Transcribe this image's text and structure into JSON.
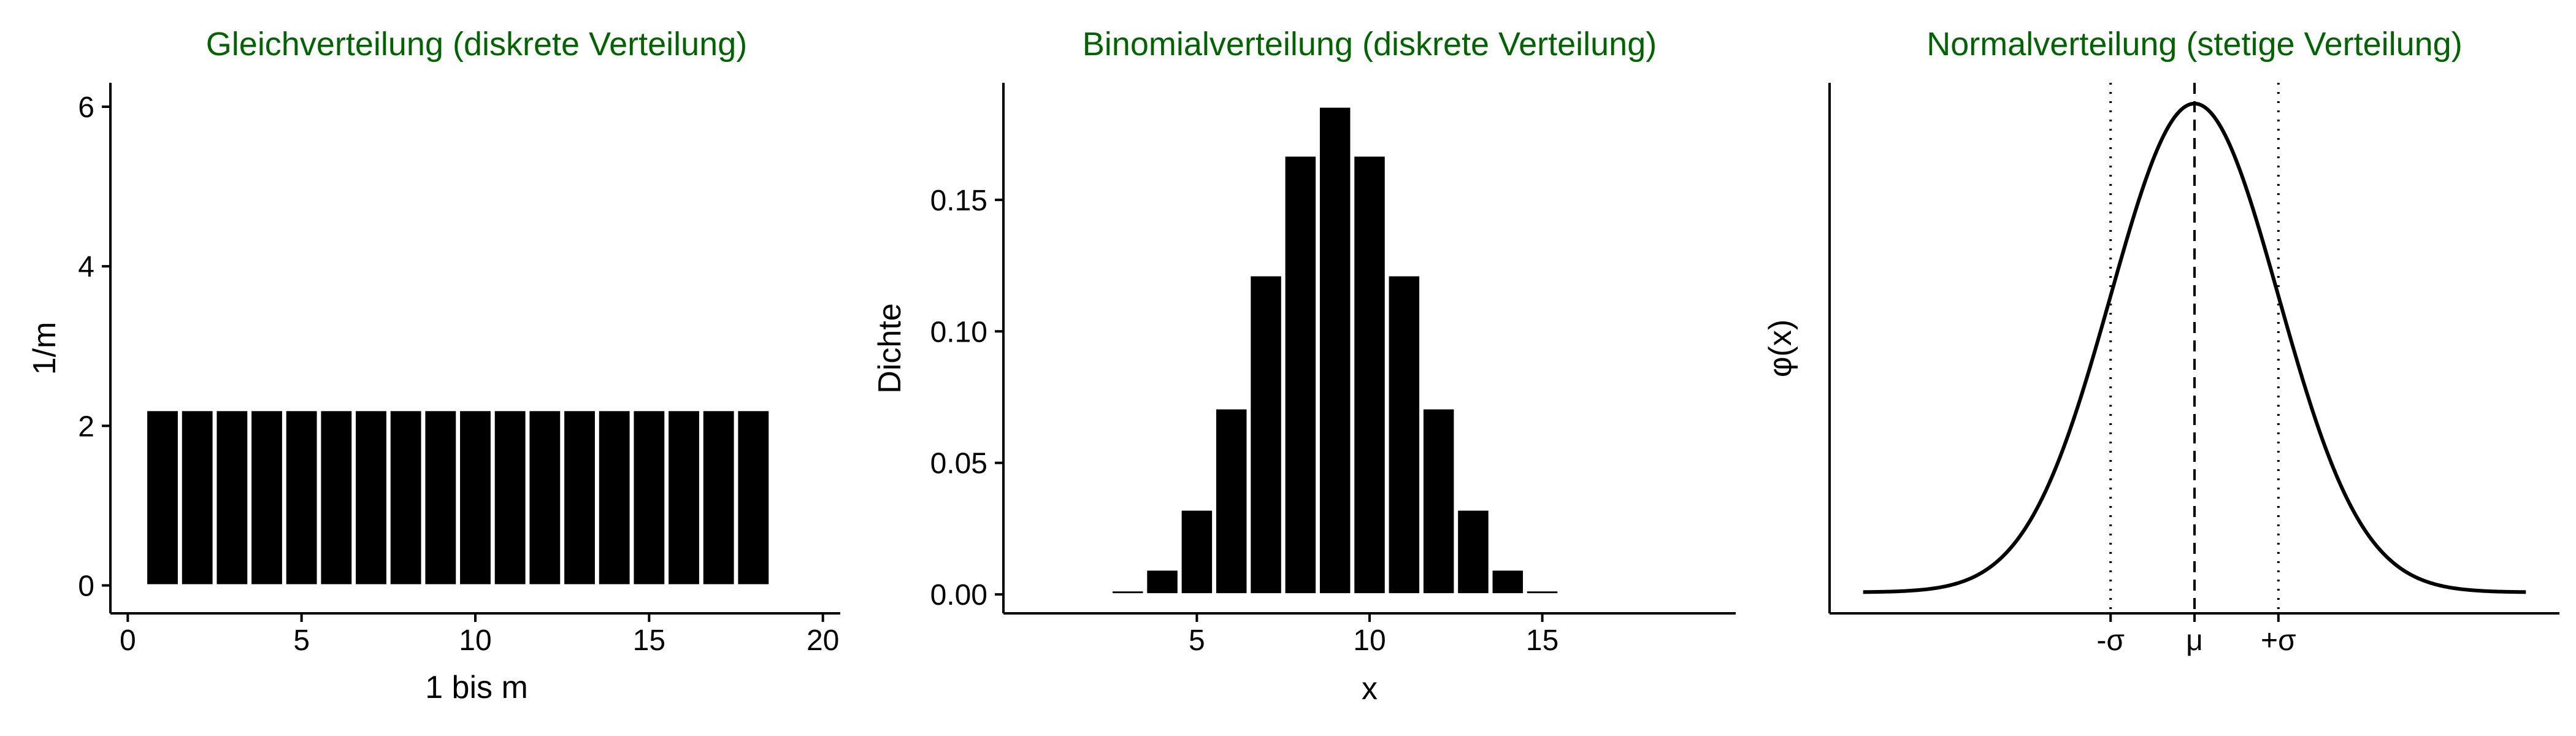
{
  "chart_data": [
    {
      "type": "bar",
      "title": "Gleichverteilung (diskrete Verteilung)",
      "xlabel": "1 bis m",
      "ylabel": "1/m",
      "categories": [
        1,
        2,
        3,
        4,
        5,
        6,
        7,
        8,
        9,
        10,
        11,
        12,
        13,
        14,
        15,
        16,
        17,
        18
      ],
      "values": [
        2.2,
        2.2,
        2.2,
        2.2,
        2.2,
        2.2,
        2.2,
        2.2,
        2.2,
        2.2,
        2.2,
        2.2,
        2.2,
        2.2,
        2.2,
        2.2,
        2.2,
        2.2
      ],
      "xlim": [
        -0.5,
        20.5
      ],
      "ylim": [
        -0.35,
        6.3
      ],
      "xticks": [
        0,
        5,
        10,
        15,
        20
      ],
      "xtick_labels": [
        "0",
        "5",
        "10",
        "15",
        "20"
      ],
      "yticks": [
        0,
        2,
        4,
        6
      ],
      "ytick_labels": [
        "0",
        "2",
        "4",
        "6"
      ],
      "grid": false,
      "colors": {
        "title": "#006400",
        "bar_fill": "#000000",
        "bar_edge": "#ffffff"
      }
    },
    {
      "type": "bar",
      "title": "Binomialverteilung (diskrete Verteilung)",
      "xlabel": "x",
      "ylabel": "Dichte",
      "categories": [
        3,
        4,
        5,
        6,
        7,
        8,
        9,
        10,
        11,
        12,
        13,
        14,
        15
      ],
      "values": [
        0.0016,
        0.0095,
        0.0323,
        0.0708,
        0.1214,
        0.1669,
        0.1855,
        0.1669,
        0.1214,
        0.0708,
        0.0323,
        0.0095,
        0.0016
      ],
      "xlim": [
        -0.6,
        20.6
      ],
      "ylim": [
        -0.0072,
        0.1945
      ],
      "xticks": [
        5,
        10,
        15
      ],
      "xtick_labels": [
        "5",
        "10",
        "15"
      ],
      "yticks": [
        0,
        0.05,
        0.1,
        0.15
      ],
      "ytick_labels": [
        "0.00",
        "0.05",
        "0.10",
        "0.15"
      ],
      "grid": false,
      "colors": {
        "title": "#006400",
        "bar_fill": "#000000",
        "bar_edge": "#ffffff"
      }
    },
    {
      "type": "line",
      "title": "Normalverteilung (stetige Verteilung)",
      "xlabel": "",
      "ylabel": "φ(x)",
      "curve": "normal density",
      "mean": 0,
      "sd": 1,
      "xlim": [
        -4.35,
        4.35
      ],
      "ylim": [
        -0.0172,
        0.4159
      ],
      "curve_range": [
        -3.95,
        3.95
      ],
      "xticks": [
        -1,
        0,
        1
      ],
      "xtick_labels": [
        "-σ",
        "μ",
        "+σ"
      ],
      "reference_lines": [
        {
          "x": -1,
          "style": "dotted"
        },
        {
          "x": 0,
          "style": "dashed"
        },
        {
          "x": 1,
          "style": "dotted"
        }
      ],
      "grid": false,
      "colors": {
        "title": "#006400",
        "line": "#000000"
      }
    }
  ]
}
